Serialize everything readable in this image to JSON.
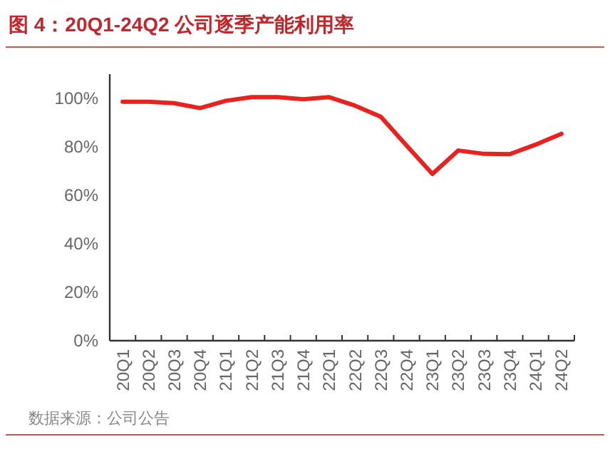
{
  "chart_data": {
    "type": "line",
    "title": "图 4：20Q1-24Q2 公司逐季产能利用率",
    "categories": [
      "20Q1",
      "20Q2",
      "20Q3",
      "20Q4",
      "21Q1",
      "21Q2",
      "21Q3",
      "21Q4",
      "22Q1",
      "22Q2",
      "22Q3",
      "22Q4",
      "23Q1",
      "23Q2",
      "23Q3",
      "23Q4",
      "24Q1",
      "24Q2"
    ],
    "series": [
      {
        "color": "#e8221f",
        "values": [
          98.6,
          98.6,
          98,
          96,
          99,
          100.5,
          100.5,
          99.6,
          100.5,
          97,
          92.4,
          80.5,
          68.8,
          78.5,
          77.1,
          77,
          80.9,
          85.4
        ]
      }
    ],
    "ylim": [
      0,
      110
    ],
    "yticks": [
      {
        "value": 0,
        "label": "0%"
      },
      {
        "value": 20,
        "label": "20%"
      },
      {
        "value": 40,
        "label": "40%"
      },
      {
        "value": 60,
        "label": "60%"
      },
      {
        "value": 80,
        "label": "80%"
      },
      {
        "value": 100,
        "label": "100%"
      }
    ],
    "grid": false,
    "marker": "none",
    "line_style": "solid",
    "annotations": [
      "数据来源：公司公告"
    ]
  }
}
